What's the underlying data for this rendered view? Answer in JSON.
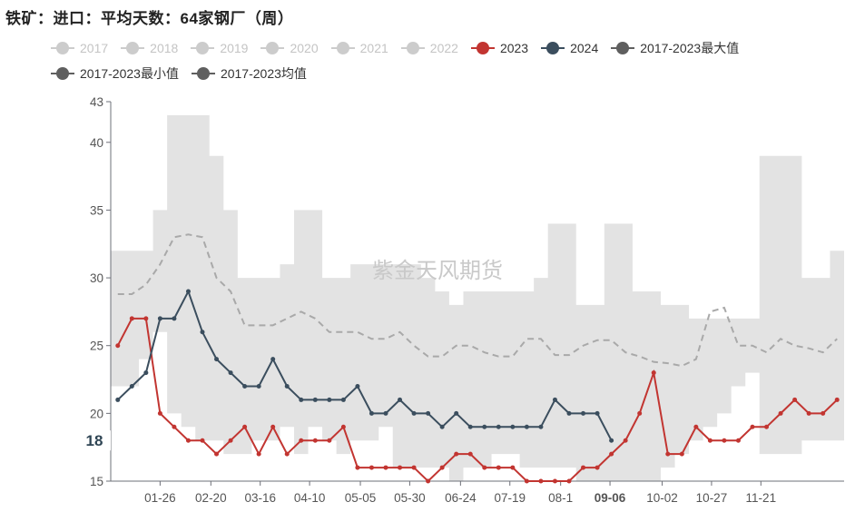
{
  "title": "铁矿：进口：平均天数：64家钢厂（周）",
  "watermark": "紫金天风期货",
  "colors": {
    "y2023": "#c23531",
    "y2024": "#3b4e5e",
    "band": "#e3e3e3",
    "avg": "#a9a9a9",
    "inactive": "#cccccc",
    "agg": "#5f5f5f"
  },
  "legend": [
    {
      "name": "2017",
      "icon": "circle-line-icon",
      "active": false
    },
    {
      "name": "2018",
      "icon": "circle-line-icon",
      "active": false
    },
    {
      "name": "2019",
      "icon": "circle-line-icon",
      "active": false
    },
    {
      "name": "2020",
      "icon": "circle-line-icon",
      "active": false
    },
    {
      "name": "2021",
      "icon": "circle-line-icon",
      "active": false
    },
    {
      "name": "2022",
      "icon": "circle-line-icon",
      "active": false
    },
    {
      "name": "2023",
      "icon": "circle-line-icon",
      "active": true
    },
    {
      "name": "2024",
      "icon": "circle-line-icon",
      "active": true
    },
    {
      "name": "2017-2023最大值",
      "icon": "circle-line-icon",
      "active": true
    },
    {
      "name": "2017-2023最小值",
      "icon": "circle-line-icon",
      "active": true
    },
    {
      "name": "2017-2023均值",
      "icon": "circle-line-icon",
      "active": true
    }
  ],
  "chart_data": {
    "type": "line",
    "ylim": [
      15,
      43
    ],
    "yticks": [
      15,
      20,
      25,
      30,
      35,
      40,
      43
    ],
    "xlim": [
      0,
      52
    ],
    "xticks": [
      {
        "label": "01-26",
        "week": 3.5
      },
      {
        "label": "02-20",
        "week": 7.1
      },
      {
        "label": "03-16",
        "week": 10.6
      },
      {
        "label": "04-10",
        "week": 14.1
      },
      {
        "label": "05-05",
        "week": 17.7
      },
      {
        "label": "05-30",
        "week": 21.2
      },
      {
        "label": "06-24",
        "week": 24.8
      },
      {
        "label": "07-19",
        "week": 28.3
      },
      {
        "label": "08-1",
        "week": 31.9
      },
      {
        "label": "09-06",
        "week": 35.4,
        "highlight": true
      },
      {
        "label": "10-02",
        "week": 39.1
      },
      {
        "label": "10-27",
        "week": 42.6
      },
      {
        "label": "11-21",
        "week": 46.1
      }
    ],
    "crosshair": {
      "x_label": "09-06",
      "x_week": 35.4,
      "y_label": "18",
      "y_value": 18
    },
    "max_2017_2023": [
      32,
      32,
      32,
      35,
      42,
      42,
      42,
      39,
      35,
      30,
      30,
      30,
      31,
      35,
      35,
      30,
      30,
      31,
      31,
      31,
      31,
      31,
      30,
      29,
      28,
      29,
      29,
      29,
      29,
      29,
      30,
      34,
      34,
      28,
      28,
      34,
      34,
      29,
      29,
      28,
      28,
      27,
      27,
      27,
      27,
      27,
      39,
      39,
      39,
      30,
      30,
      32
    ],
    "min_2017_2023": [
      22,
      22,
      24,
      26,
      20,
      19,
      18,
      18,
      17,
      17,
      18,
      18,
      19,
      17,
      19,
      18,
      17,
      18,
      18,
      19,
      16,
      16,
      16,
      16,
      15,
      16,
      16,
      17,
      17,
      16,
      16,
      16,
      16,
      15,
      15,
      15,
      15,
      15,
      15,
      16,
      17,
      18,
      19,
      20,
      22,
      23,
      17,
      17,
      17,
      18,
      18,
      18
    ],
    "avg_2017_2023": [
      28.8,
      28.8,
      29.5,
      31,
      33,
      33.2,
      33,
      30,
      29,
      26.5,
      26.5,
      26.5,
      27,
      27.5,
      27,
      26,
      26,
      26,
      25.5,
      25.5,
      26,
      25,
      24.2,
      24.2,
      25,
      25,
      24.5,
      24.2,
      24.2,
      25.5,
      25.5,
      24.3,
      24.3,
      25,
      25.4,
      25.4,
      24.5,
      24.2,
      23.8,
      23.7,
      23.5,
      24,
      27.5,
      27.8,
      25,
      25,
      24.5,
      25.5,
      25,
      24.8,
      24.5,
      25.5
    ],
    "series": [
      {
        "name": "2023",
        "color": "#c23531",
        "values": [
          25,
          27,
          27,
          20,
          19,
          18,
          18,
          17,
          18,
          19,
          17,
          19,
          17,
          18,
          18,
          18,
          19,
          16,
          16,
          16,
          16,
          16,
          15,
          16,
          17,
          17,
          16,
          16,
          16,
          15,
          15,
          15,
          15,
          16,
          16,
          17,
          18,
          20,
          23,
          17,
          17,
          19,
          18,
          18,
          18,
          19,
          19,
          20,
          21,
          20,
          20,
          21
        ]
      },
      {
        "name": "2024",
        "color": "#3b4e5e",
        "values": [
          21,
          22,
          23,
          27,
          27,
          29,
          26,
          24,
          23,
          22,
          22,
          24,
          22,
          21,
          21,
          21,
          21,
          22,
          20,
          20,
          21,
          20,
          20,
          19,
          20,
          19,
          19,
          19,
          19,
          19,
          19,
          21,
          20,
          20,
          20,
          18
        ]
      }
    ]
  }
}
